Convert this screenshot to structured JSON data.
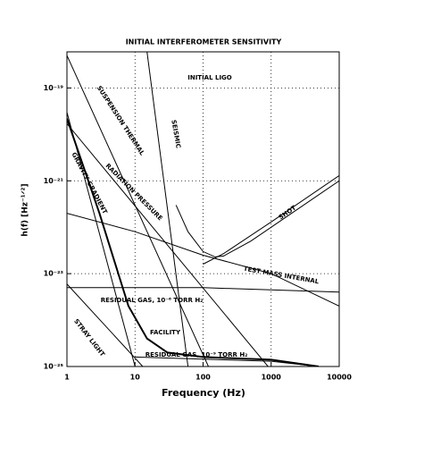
{
  "chart_data": {
    "type": "line",
    "title": "INITIAL INTERFEROMETER SENSITIVITY",
    "x_label": "Frequency (Hz)",
    "y_label": "h(f) [Hz⁻¹ᐟ²]",
    "xlim": [
      1,
      10000
    ],
    "ylim": [
      1e-25,
      6e-19
    ],
    "xscale": "log",
    "yscale": "log",
    "grid": true,
    "xticks": [
      1,
      10,
      100,
      1000,
      10000
    ],
    "yticks": [
      {
        "value": 1e-25,
        "label": "10⁻²⁵"
      },
      {
        "value": 1e-23,
        "label": "10⁻²³"
      },
      {
        "value": 1e-21,
        "label": "10⁻²¹"
      },
      {
        "value": 1e-19,
        "label": "10⁻¹⁹"
      }
    ],
    "series": [
      {
        "name": "SEISMIC",
        "color": "#000000",
        "x": [
          15,
          60
        ],
        "values": [
          6e-19,
          1e-25
        ]
      },
      {
        "name": "SUSPENSION THERMAL",
        "color": "#000000",
        "x": [
          1,
          120
        ],
        "values": [
          5e-19,
          1e-25
        ]
      },
      {
        "name": "RADIATION PRESSURE",
        "color": "#000000",
        "x": [
          1,
          900
        ],
        "values": [
          1.7e-20,
          1e-25
        ]
      },
      {
        "name": "GRAVITY GRADIENT",
        "color": "#000000",
        "x": [
          1,
          10
        ],
        "values": [
          3e-20,
          1e-25
        ]
      },
      {
        "name": "INITIAL LIGO",
        "color": "#000000",
        "x": [
          40,
          60,
          100,
          150,
          200,
          500,
          1000,
          10000
        ],
        "values": [
          3e-22,
          8e-23,
          3e-23,
          2.3e-23,
          2.4e-23,
          5e-23,
          1e-22,
          1e-21
        ]
      },
      {
        "name": "SHOT",
        "color": "#000000",
        "x": [
          100,
          200,
          1000,
          10000
        ],
        "values": [
          1.6e-23,
          2.7e-23,
          1.3e-22,
          1.3e-21
        ]
      },
      {
        "name": "TEST MASS INTERNAL",
        "color": "#000000",
        "x": [
          1,
          10,
          100,
          1000,
          10000
        ],
        "values": [
          2e-22,
          8e-23,
          2.5e-23,
          1e-23,
          2e-24
        ]
      },
      {
        "name": "RESIDUAL GAS, 10⁻⁶ TORR H₂",
        "color": "#000000",
        "x": [
          1,
          100,
          10000
        ],
        "values": [
          5e-24,
          5e-24,
          4e-24
        ]
      },
      {
        "name": "STRAY LIGHT",
        "color": "#000000",
        "x": [
          1,
          13
        ],
        "values": [
          6e-24,
          1e-25
        ]
      },
      {
        "name": "FACILITY",
        "color": "#000000",
        "x": [
          1,
          3,
          8,
          15,
          30,
          100,
          1000,
          5000
        ],
        "values": [
          2.2e-20,
          2e-22,
          2e-24,
          4e-25,
          2e-25,
          1.6e-25,
          1.4e-25,
          1e-25
        ]
      },
      {
        "name": "RESIDUAL GAS, 10⁻⁹ TORR H₂",
        "color": "#000000",
        "x": [
          10,
          1000,
          5000
        ],
        "values": [
          1.6e-25,
          1.3e-25,
          1e-25
        ]
      }
    ]
  }
}
